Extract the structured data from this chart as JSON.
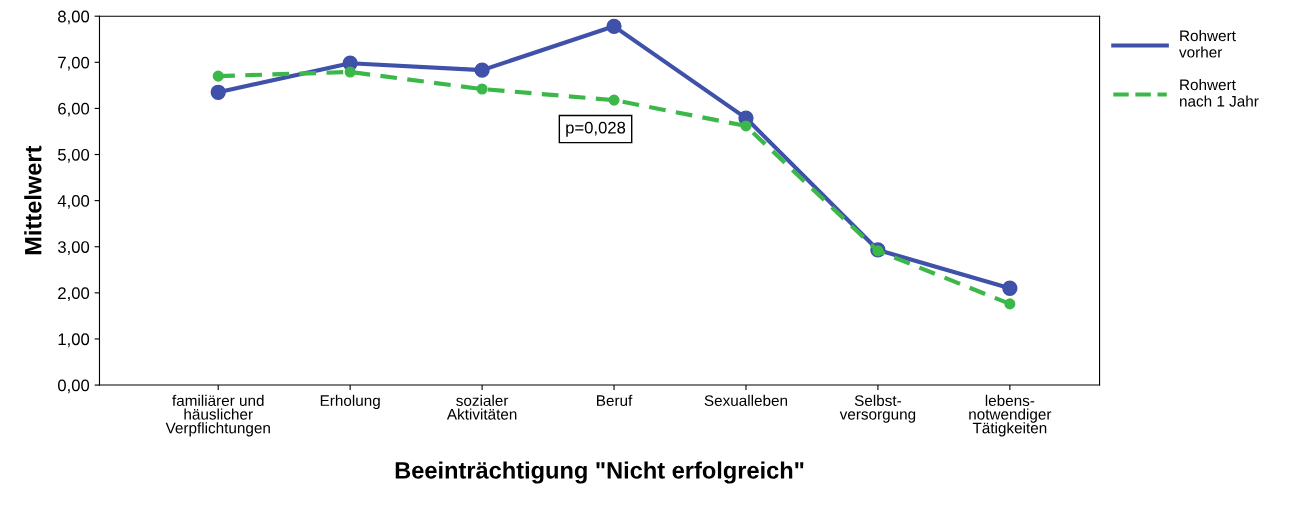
{
  "chart_data": {
    "type": "line",
    "xlabel": "Beeinträchtigung \"Nicht erfolgreich\"",
    "ylabel": "Mittelwert",
    "categories": [
      "familiärer und\nhäuslicher\nVerpflichtungen",
      "Erholung",
      "sozialer\nAktivitäten",
      "Beruf",
      "Sexualleben",
      "Selbst-\nversorgung",
      "lebens-\nnotwendiger\nTätigkeiten"
    ],
    "series": [
      {
        "name": "Rohwert\nvorher",
        "color": "#3f51a8",
        "line_style": "solid",
        "values": [
          6.35,
          6.98,
          6.83,
          7.78,
          5.79,
          2.93,
          2.1
        ]
      },
      {
        "name": "Rohwert\nnach 1 Jahr",
        "color": "#3cb84a",
        "line_style": "dashed",
        "values": [
          6.7,
          6.79,
          6.42,
          6.18,
          5.62,
          2.91,
          1.76
        ]
      }
    ],
    "ylim": [
      0,
      8
    ],
    "yticks": [
      {
        "value": 0,
        "label": "0,00"
      },
      {
        "value": 1,
        "label": "1,00"
      },
      {
        "value": 2,
        "label": "2,00"
      },
      {
        "value": 3,
        "label": "3,00"
      },
      {
        "value": 4,
        "label": "4,00"
      },
      {
        "value": 5,
        "label": "5,00"
      },
      {
        "value": 6,
        "label": "6,00"
      },
      {
        "value": 7,
        "label": "7,00"
      },
      {
        "value": 8,
        "label": "8,00"
      }
    ],
    "annotations": [
      "p=0,028"
    ],
    "marker": "circle",
    "grid": false,
    "legend": "right"
  }
}
